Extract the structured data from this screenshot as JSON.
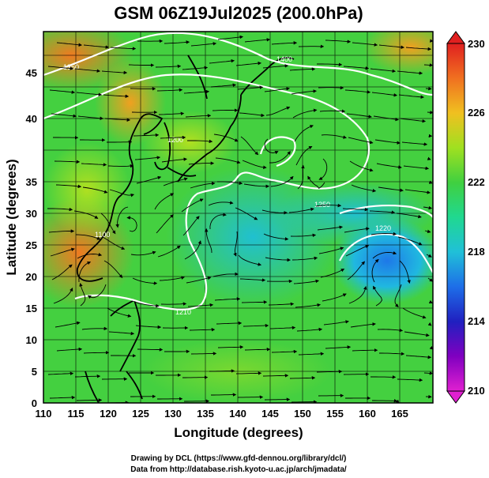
{
  "title": "GSM 06Z19Jul2025 (200.0hPa)",
  "xlabel": "Longitude (degrees)",
  "ylabel": "Latitude (degrees)",
  "x_ticks": [
    "110",
    "115",
    "120",
    "125",
    "130",
    "135",
    "140",
    "145",
    "150",
    "155",
    "160",
    "165"
  ],
  "y_ticks": [
    "0",
    "5",
    "10",
    "15",
    "20",
    "25",
    "30",
    "35",
    "40",
    "45"
  ],
  "colorbar": {
    "ticks": [
      "210",
      "214",
      "218",
      "222",
      "226",
      "230"
    ],
    "min": 210,
    "max": 230,
    "colors": [
      "#e020d0",
      "#8000c0",
      "#2020c0",
      "#1e6ee8",
      "#20c0d8",
      "#20d890",
      "#40d040",
      "#a0e020",
      "#f0c020",
      "#f07020",
      "#e02020"
    ]
  },
  "contour_labels": [
    "1400",
    "1350",
    "1250",
    "1200",
    "1210",
    "1220",
    "1100"
  ],
  "footer": {
    "line1": "Drawing by DCL (https://www.gfd-dennou.org/library/dcl/)",
    "line2": "Data from http://database.rish.kyoto-u.ac.jp/arch/jmadata/"
  },
  "chart_data": {
    "type": "heatmap",
    "variable": "temperature-like field with streamlines and height contours",
    "xlim": [
      110,
      170
    ],
    "ylim": [
      0,
      50
    ],
    "color_range": [
      210,
      230
    ],
    "grid": true
  }
}
